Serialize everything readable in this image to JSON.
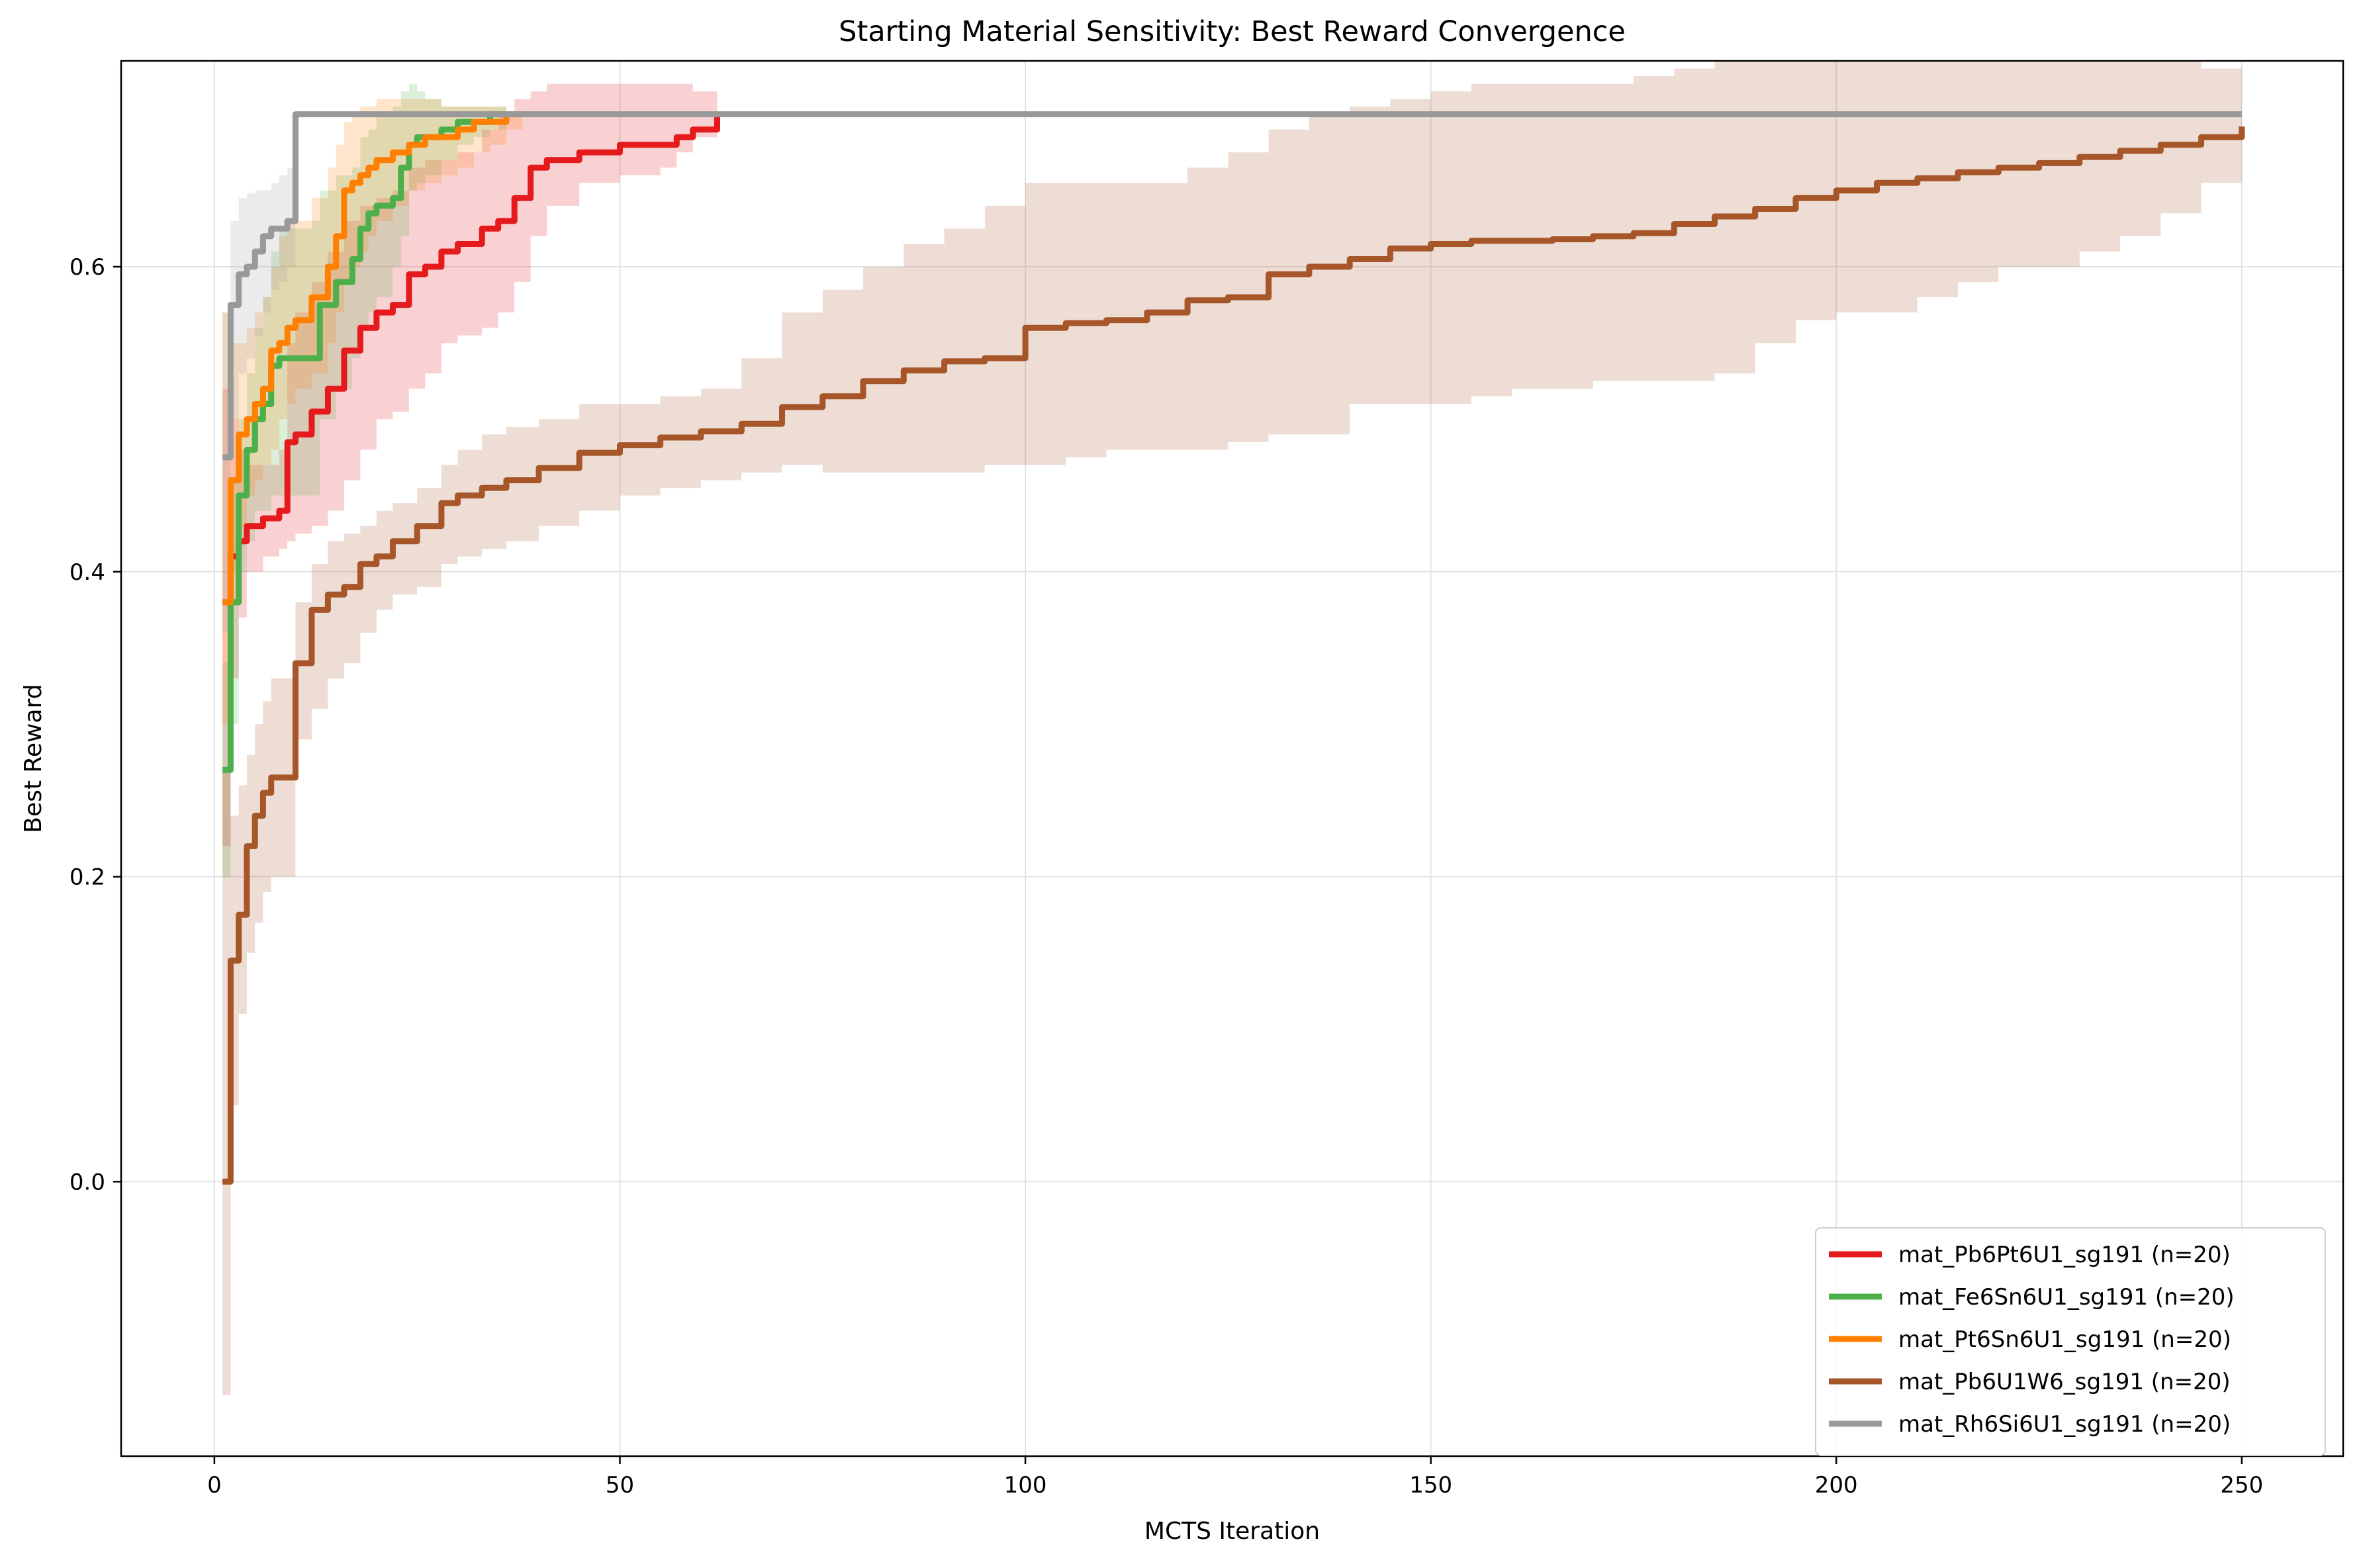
{
  "chart_data": {
    "type": "line",
    "title": "Starting Material Sensitivity: Best Reward Convergence",
    "xlabel": "MCTS Iteration",
    "ylabel": "Best Reward",
    "xlim": [
      -11.5,
      262.5
    ],
    "ylim": [
      -0.18,
      0.735
    ],
    "x_ticks": [
      0,
      50,
      100,
      150,
      200,
      250
    ],
    "y_ticks": [
      0.0,
      0.2,
      0.4,
      0.6
    ],
    "x_tick_labels": [
      "0",
      "50",
      "100",
      "150",
      "200",
      "250"
    ],
    "y_tick_labels": [
      "0.0",
      "0.2",
      "0.4",
      "0.6"
    ],
    "grid": true,
    "legend_position": "lower-right",
    "band": "shaded band around each mean line",
    "series": [
      {
        "name": "mat_Pb6Pt6U1_sg191 (n=20)",
        "color": "#e41a1c",
        "x": [
          1,
          2,
          3,
          4,
          6,
          8,
          9,
          10,
          12,
          14,
          16,
          18,
          20,
          22,
          24,
          26,
          28,
          30,
          33,
          35,
          37,
          39,
          41,
          45,
          50,
          55,
          57,
          59,
          62
        ],
        "mean": [
          0.38,
          0.41,
          0.42,
          0.43,
          0.435,
          0.44,
          0.485,
          0.49,
          0.505,
          0.52,
          0.545,
          0.56,
          0.57,
          0.575,
          0.595,
          0.6,
          0.61,
          0.615,
          0.625,
          0.63,
          0.645,
          0.665,
          0.67,
          0.675,
          0.68,
          0.68,
          0.685,
          0.69,
          0.7
        ],
        "lower": [
          0.22,
          0.33,
          0.37,
          0.4,
          0.41,
          0.415,
          0.42,
          0.425,
          0.43,
          0.44,
          0.46,
          0.48,
          0.5,
          0.505,
          0.52,
          0.53,
          0.55,
          0.555,
          0.56,
          0.57,
          0.59,
          0.62,
          0.64,
          0.655,
          0.66,
          0.665,
          0.675,
          0.685,
          0.7
        ],
        "upper": [
          0.52,
          0.5,
          0.48,
          0.47,
          0.47,
          0.48,
          0.55,
          0.57,
          0.59,
          0.61,
          0.63,
          0.64,
          0.645,
          0.65,
          0.665,
          0.67,
          0.67,
          0.675,
          0.69,
          0.7,
          0.71,
          0.715,
          0.72,
          0.72,
          0.72,
          0.72,
          0.72,
          0.715,
          0.7
        ]
      },
      {
        "name": "mat_Fe6Sn6U1_sg191 (n=20)",
        "color": "#4daf4a",
        "x": [
          1,
          2,
          3,
          4,
          5,
          6,
          7,
          8,
          10,
          12,
          13,
          15,
          17,
          18,
          19,
          20,
          22,
          23,
          24,
          25,
          26,
          28,
          30,
          32,
          34,
          36
        ],
        "mean": [
          0.27,
          0.38,
          0.45,
          0.48,
          0.5,
          0.51,
          0.535,
          0.54,
          0.54,
          0.54,
          0.575,
          0.59,
          0.605,
          0.625,
          0.635,
          0.64,
          0.645,
          0.665,
          0.68,
          0.685,
          0.685,
          0.69,
          0.695,
          0.695,
          0.7,
          0.7
        ],
        "lower": [
          0.2,
          0.3,
          0.4,
          0.42,
          0.44,
          0.44,
          0.45,
          0.45,
          0.45,
          0.45,
          0.5,
          0.52,
          0.54,
          0.56,
          0.57,
          0.58,
          0.6,
          0.62,
          0.65,
          0.655,
          0.66,
          0.67,
          0.68,
          0.685,
          0.69,
          0.7
        ],
        "upper": [
          0.34,
          0.46,
          0.5,
          0.53,
          0.56,
          0.58,
          0.61,
          0.625,
          0.625,
          0.63,
          0.65,
          0.66,
          0.665,
          0.685,
          0.69,
          0.7,
          0.705,
          0.715,
          0.72,
          0.715,
          0.71,
          0.705,
          0.705,
          0.705,
          0.705,
          0.7
        ]
      },
      {
        "name": "mat_Pt6Sn6U1_sg191 (n=20)",
        "color": "#ff7f00",
        "x": [
          1,
          2,
          3,
          4,
          5,
          6,
          7,
          8,
          9,
          10,
          12,
          14,
          15,
          16,
          17,
          18,
          19,
          20,
          22,
          24,
          26,
          28,
          30,
          32,
          34,
          36,
          38
        ],
        "mean": [
          0.38,
          0.46,
          0.49,
          0.5,
          0.51,
          0.52,
          0.545,
          0.55,
          0.56,
          0.565,
          0.58,
          0.6,
          0.62,
          0.65,
          0.655,
          0.66,
          0.665,
          0.67,
          0.675,
          0.68,
          0.685,
          0.685,
          0.69,
          0.695,
          0.695,
          0.7,
          0.7
        ],
        "lower": [
          0.3,
          0.4,
          0.43,
          0.45,
          0.46,
          0.47,
          0.48,
          0.5,
          0.51,
          0.52,
          0.53,
          0.55,
          0.57,
          0.59,
          0.6,
          0.61,
          0.62,
          0.63,
          0.64,
          0.65,
          0.655,
          0.66,
          0.665,
          0.675,
          0.68,
          0.69,
          0.7
        ],
        "upper": [
          0.57,
          0.55,
          0.55,
          0.56,
          0.57,
          0.58,
          0.6,
          0.62,
          0.63,
          0.63,
          0.645,
          0.665,
          0.68,
          0.695,
          0.7,
          0.705,
          0.705,
          0.71,
          0.71,
          0.71,
          0.71,
          0.705,
          0.705,
          0.705,
          0.705,
          0.7,
          0.7
        ]
      },
      {
        "name": "mat_Pb6U1W6_sg191 (n=20)",
        "color": "#a65628",
        "x": [
          1,
          2,
          3,
          4,
          5,
          6,
          7,
          8,
          10,
          12,
          14,
          16,
          18,
          20,
          22,
          25,
          28,
          30,
          33,
          36,
          40,
          45,
          50,
          55,
          60,
          65,
          70,
          75,
          80,
          85,
          90,
          95,
          100,
          105,
          110,
          115,
          120,
          125,
          130,
          135,
          140,
          145,
          150,
          155,
          160,
          165,
          170,
          175,
          180,
          185,
          190,
          195,
          200,
          205,
          210,
          215,
          220,
          225,
          230,
          235,
          240,
          245,
          250
        ],
        "mean": [
          0.0,
          0.145,
          0.175,
          0.22,
          0.24,
          0.255,
          0.265,
          0.265,
          0.34,
          0.375,
          0.385,
          0.39,
          0.405,
          0.41,
          0.42,
          0.43,
          0.445,
          0.45,
          0.455,
          0.46,
          0.468,
          0.478,
          0.483,
          0.488,
          0.492,
          0.497,
          0.508,
          0.515,
          0.525,
          0.532,
          0.538,
          0.54,
          0.56,
          0.563,
          0.565,
          0.57,
          0.578,
          0.58,
          0.595,
          0.6,
          0.605,
          0.612,
          0.615,
          0.617,
          0.617,
          0.618,
          0.62,
          0.622,
          0.628,
          0.633,
          0.638,
          0.645,
          0.65,
          0.655,
          0.658,
          0.662,
          0.665,
          0.668,
          0.672,
          0.676,
          0.68,
          0.685,
          0.692
        ],
        "lower": [
          -0.14,
          0.05,
          0.11,
          0.15,
          0.17,
          0.19,
          0.2,
          0.2,
          0.29,
          0.31,
          0.33,
          0.34,
          0.36,
          0.375,
          0.385,
          0.39,
          0.405,
          0.41,
          0.415,
          0.42,
          0.43,
          0.44,
          0.45,
          0.455,
          0.46,
          0.465,
          0.47,
          0.465,
          0.465,
          0.465,
          0.465,
          0.47,
          0.47,
          0.475,
          0.48,
          0.48,
          0.48,
          0.485,
          0.49,
          0.49,
          0.51,
          0.51,
          0.51,
          0.515,
          0.52,
          0.52,
          0.525,
          0.525,
          0.525,
          0.53,
          0.55,
          0.565,
          0.57,
          0.57,
          0.58,
          0.59,
          0.6,
          0.6,
          0.61,
          0.62,
          0.635,
          0.655,
          0.665
        ],
        "upper": [
          0.27,
          0.24,
          0.26,
          0.28,
          0.3,
          0.315,
          0.33,
          0.33,
          0.38,
          0.405,
          0.42,
          0.425,
          0.43,
          0.44,
          0.445,
          0.455,
          0.47,
          0.48,
          0.49,
          0.495,
          0.5,
          0.51,
          0.51,
          0.515,
          0.52,
          0.54,
          0.57,
          0.585,
          0.6,
          0.615,
          0.625,
          0.64,
          0.655,
          0.655,
          0.655,
          0.655,
          0.665,
          0.675,
          0.69,
          0.7,
          0.705,
          0.71,
          0.715,
          0.72,
          0.72,
          0.72,
          0.72,
          0.725,
          0.73,
          0.735,
          0.735,
          0.735,
          0.735,
          0.735,
          0.735,
          0.735,
          0.735,
          0.735,
          0.735,
          0.735,
          0.735,
          0.73,
          0.72
        ]
      },
      {
        "name": "mat_Rh6Si6U1_sg191 (n=20)",
        "color": "#999999",
        "x": [
          1,
          2,
          3,
          4,
          5,
          6,
          7,
          8,
          9,
          10,
          250
        ],
        "mean": [
          0.475,
          0.575,
          0.595,
          0.6,
          0.61,
          0.62,
          0.625,
          0.625,
          0.63,
          0.7,
          0.7
        ],
        "lower": [
          0.36,
          0.5,
          0.53,
          0.54,
          0.555,
          0.57,
          0.585,
          0.59,
          0.6,
          0.7,
          0.7
        ],
        "upper": [
          0.57,
          0.63,
          0.645,
          0.648,
          0.65,
          0.65,
          0.655,
          0.66,
          0.665,
          0.7,
          0.7
        ]
      }
    ]
  }
}
